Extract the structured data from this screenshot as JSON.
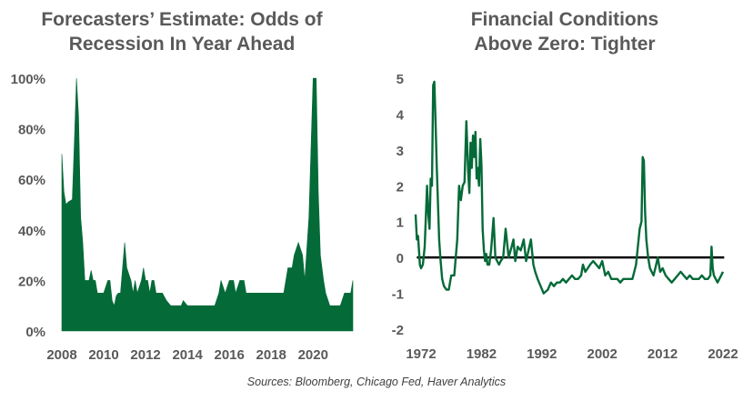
{
  "colors": {
    "accent": "#046a38",
    "axis_text": "#595959",
    "zero_line": "#000000"
  },
  "source_note": "Sources: Bloomberg,  Chicago Fed, Haver Analytics",
  "chart_data": [
    {
      "type": "area",
      "title_lines": [
        "Forecasters’ Estimate: Odds of",
        "Recession In Year Ahead"
      ],
      "x_ticks": [
        "2008",
        "2010",
        "2012",
        "2014",
        "2016",
        "2018",
        "2020"
      ],
      "x_range": [
        2008,
        2021.9
      ],
      "y_ticks": [
        "0%",
        "20%",
        "40%",
        "60%",
        "80%",
        "100%"
      ],
      "y_range": [
        0,
        100
      ],
      "grid": false,
      "x": [
        2008.0,
        2008.1,
        2008.2,
        2008.3,
        2008.5,
        2008.6,
        2008.7,
        2008.8,
        2008.9,
        2009.0,
        2009.1,
        2009.2,
        2009.3,
        2009.4,
        2009.5,
        2009.6,
        2009.7,
        2009.8,
        2010.0,
        2010.2,
        2010.3,
        2010.4,
        2010.5,
        2010.6,
        2010.7,
        2010.8,
        2011.0,
        2011.1,
        2011.3,
        2011.4,
        2011.5,
        2011.6,
        2011.8,
        2011.9,
        2012.0,
        2012.1,
        2012.2,
        2012.3,
        2012.4,
        2012.5,
        2012.6,
        2012.8,
        2013.0,
        2013.2,
        2013.4,
        2013.5,
        2013.7,
        2013.8,
        2014.0,
        2014.3,
        2014.5,
        2014.7,
        2015.0,
        2015.3,
        2015.5,
        2015.6,
        2015.8,
        2016.0,
        2016.2,
        2016.3,
        2016.5,
        2016.7,
        2016.8,
        2017.0,
        2017.2,
        2017.5,
        2017.8,
        2018.0,
        2018.3,
        2018.6,
        2018.8,
        2019.0,
        2019.1,
        2019.3,
        2019.5,
        2019.6,
        2019.8,
        2020.0,
        2020.1,
        2020.15,
        2020.25,
        2020.35,
        2020.5,
        2020.6,
        2020.8,
        2021.0,
        2021.3,
        2021.5,
        2021.6,
        2021.8,
        2021.9
      ],
      "y": [
        70,
        55,
        50,
        51,
        52,
        75,
        100,
        85,
        45,
        35,
        20,
        20,
        20,
        24,
        20,
        20,
        15,
        15,
        15,
        20,
        20,
        12,
        10,
        14,
        15,
        15,
        35,
        25,
        20,
        15,
        20,
        15,
        20,
        25,
        20,
        20,
        15,
        20,
        20,
        15,
        15,
        15,
        12,
        10,
        10,
        10,
        10,
        12,
        10,
        10,
        10,
        10,
        10,
        10,
        15,
        20,
        15,
        20,
        20,
        15,
        20,
        20,
        15,
        15,
        15,
        15,
        15,
        15,
        15,
        15,
        25,
        25,
        30,
        35,
        30,
        20,
        45,
        100,
        100,
        100,
        55,
        30,
        20,
        15,
        10,
        10,
        10,
        15,
        15,
        15,
        20
      ]
    },
    {
      "type": "line",
      "title_lines": [
        "Financial Conditions",
        "Above Zero: Tighter"
      ],
      "x_ticks": [
        "1972",
        "1982",
        "1992",
        "2002",
        "2012",
        "2022"
      ],
      "x_range": [
        1972,
        2022
      ],
      "y_ticks": [
        "-2",
        "-1",
        "0",
        "1",
        "2",
        "3",
        "4",
        "5"
      ],
      "y_range": [
        -2,
        5
      ],
      "grid": false,
      "reference_line": 0,
      "x": [
        1971.1,
        1971.3,
        1971.5,
        1971.8,
        1972.0,
        1972.3,
        1972.6,
        1973.0,
        1973.2,
        1973.4,
        1973.6,
        1973.8,
        1974.0,
        1974.2,
        1974.4,
        1974.6,
        1974.8,
        1975.0,
        1975.2,
        1975.5,
        1975.8,
        1976.2,
        1976.6,
        1977.0,
        1977.5,
        1978.0,
        1978.3,
        1978.6,
        1978.9,
        1979.2,
        1979.5,
        1979.8,
        1980.0,
        1980.2,
        1980.4,
        1980.6,
        1980.8,
        1981.0,
        1981.2,
        1981.4,
        1981.6,
        1981.8,
        1982.0,
        1982.2,
        1982.4,
        1982.6,
        1982.8,
        1983.0,
        1983.3,
        1983.6,
        1984.0,
        1984.3,
        1984.6,
        1984.9,
        1985.2,
        1985.6,
        1986.0,
        1986.5,
        1987.0,
        1987.3,
        1987.6,
        1988.0,
        1988.5,
        1989.0,
        1989.4,
        1989.8,
        1990.2,
        1990.6,
        1990.9,
        1991.3,
        1991.8,
        1992.3,
        1993.0,
        1993.5,
        1994.0,
        1994.5,
        1995.0,
        1995.5,
        1996.0,
        1996.5,
        1997.0,
        1997.5,
        1998.0,
        1998.5,
        1998.8,
        1999.2,
        1999.6,
        2000.0,
        2000.5,
        2001.0,
        2001.5,
        2002.0,
        2002.5,
        2003.0,
        2003.5,
        2004.0,
        2004.5,
        2005.0,
        2005.5,
        2006.0,
        2006.5,
        2007.0,
        2007.3,
        2007.6,
        2007.9,
        2008.2,
        2008.5,
        2008.7,
        2008.9,
        2009.1,
        2009.3,
        2009.6,
        2009.9,
        2010.2,
        2010.5,
        2010.8,
        2011.2,
        2011.6,
        2012.0,
        2012.5,
        2013.0,
        2013.5,
        2014.0,
        2014.5,
        2015.0,
        2015.5,
        2016.0,
        2016.5,
        2017.0,
        2017.5,
        2018.0,
        2018.5,
        2019.0,
        2019.5,
        2019.9,
        2020.1,
        2020.3,
        2020.5,
        2020.8,
        2021.1,
        2021.4,
        2021.7,
        2022.0
      ],
      "y": [
        1.2,
        0.5,
        0.6,
        -0.2,
        -0.3,
        -0.2,
        0.3,
        2.0,
        1.2,
        0.8,
        2.2,
        2.0,
        4.8,
        4.9,
        3.8,
        2.5,
        1.5,
        0.5,
        0.0,
        -0.6,
        -0.8,
        -0.9,
        -0.9,
        -0.5,
        -0.5,
        0.5,
        2.0,
        1.6,
        2.0,
        2.1,
        3.8,
        2.4,
        1.8,
        3.2,
        2.5,
        3.4,
        2.8,
        3.5,
        2.2,
        2.5,
        2.0,
        3.3,
        2.6,
        0.8,
        0.2,
        -0.1,
        0.1,
        -0.2,
        -0.2,
        0.2,
        1.1,
        0.0,
        -0.1,
        -0.2,
        -0.1,
        0.0,
        0.8,
        0.0,
        0.3,
        0.5,
        -0.1,
        0.3,
        0.2,
        0.5,
        -0.1,
        0.2,
        0.5,
        -0.2,
        -0.4,
        -0.6,
        -0.8,
        -1.0,
        -0.9,
        -0.7,
        -0.8,
        -0.7,
        -0.7,
        -0.6,
        -0.7,
        -0.6,
        -0.5,
        -0.6,
        -0.6,
        -0.5,
        -0.2,
        -0.4,
        -0.3,
        -0.2,
        -0.1,
        -0.2,
        -0.3,
        -0.1,
        -0.5,
        -0.4,
        -0.6,
        -0.6,
        -0.6,
        -0.7,
        -0.6,
        -0.6,
        -0.6,
        -0.6,
        -0.4,
        -0.2,
        0.3,
        0.8,
        1.0,
        2.8,
        2.7,
        1.3,
        0.5,
        0.0,
        -0.3,
        -0.4,
        -0.5,
        -0.3,
        0.0,
        -0.4,
        -0.3,
        -0.5,
        -0.6,
        -0.7,
        -0.6,
        -0.5,
        -0.4,
        -0.5,
        -0.6,
        -0.5,
        -0.6,
        -0.6,
        -0.6,
        -0.5,
        -0.6,
        -0.6,
        -0.5,
        0.3,
        -0.3,
        -0.5,
        -0.6,
        -0.7,
        -0.6,
        -0.5,
        -0.4
      ]
    }
  ]
}
